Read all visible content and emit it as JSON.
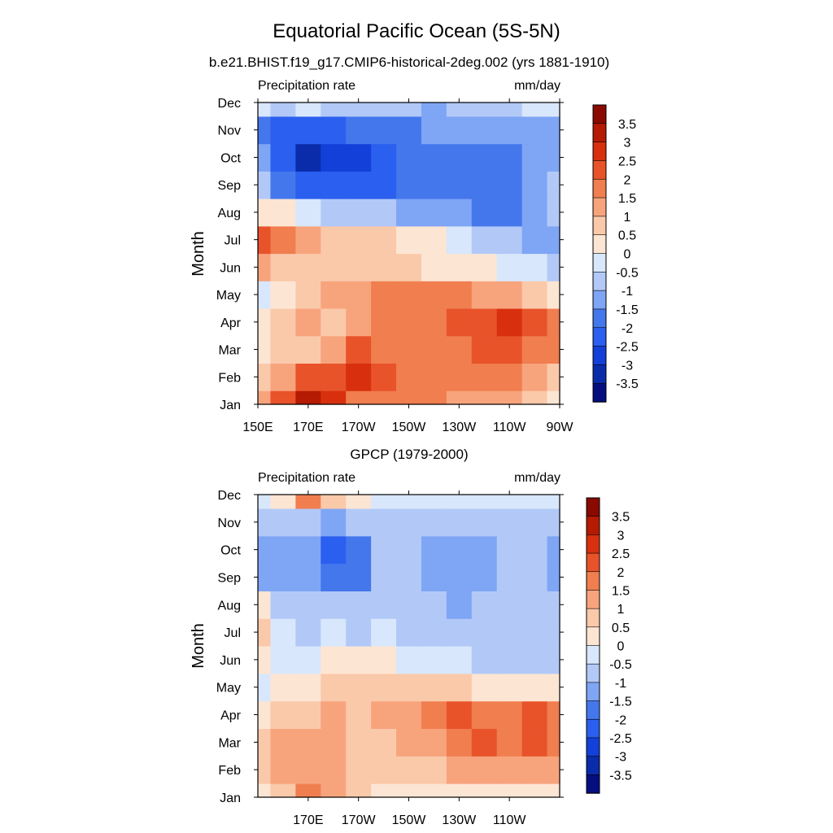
{
  "figure": {
    "title": "Equatorial Pacific Ocean (5S-5N)"
  },
  "chart_data": [
    {
      "type": "heatmap",
      "subtitle": "b.e21.BHIST.f19_g17.CMIP6-historical-2deg.002 (yrs 1881-1910)",
      "left_label": "Precipitation rate",
      "right_label": "mm/day",
      "ylabel": "Month",
      "xlabel": "",
      "x_range": [
        150,
        270
      ],
      "x_ticks": [
        150,
        170,
        190,
        210,
        230,
        250,
        270
      ],
      "x_tick_labels": [
        "150E",
        "170E",
        "170W",
        "150W",
        "130W",
        "110W",
        "90W"
      ],
      "y_ticks": [
        "Jan",
        "Feb",
        "Mar",
        "Apr",
        "May",
        "Jun",
        "Jul",
        "Aug",
        "Sep",
        "Oct",
        "Nov",
        "Dec"
      ],
      "colorbar_ticks": [
        "3.5",
        "3",
        "2.5",
        "2",
        "1.5",
        "1",
        "0.5",
        "0",
        "-0.5",
        "-1",
        "-1.5",
        "-2",
        "-2.5",
        "-3",
        "-3.5"
      ],
      "lon": [
        150,
        160,
        170,
        180,
        190,
        200,
        210,
        220,
        230,
        240,
        250,
        260,
        270
      ],
      "values": [
        [
          1.0,
          2.0,
          3.2,
          2.5,
          1.8,
          1.5,
          1.5,
          1.5,
          1.2,
          1.2,
          1.0,
          0.6,
          0.2
        ],
        [
          0.7,
          1.2,
          2.0,
          2.3,
          2.7,
          2.0,
          1.7,
          1.6,
          1.7,
          1.7,
          1.5,
          1.0,
          0.6
        ],
        [
          0.4,
          0.5,
          0.9,
          1.4,
          2.0,
          1.7,
          1.7,
          1.8,
          1.9,
          2.0,
          2.0,
          1.6,
          1.5
        ],
        [
          0.1,
          0.6,
          1.2,
          0.7,
          1.2,
          1.6,
          1.8,
          1.8,
          2.2,
          2.4,
          2.7,
          2.2,
          1.6
        ],
        [
          -0.2,
          0.3,
          0.8,
          1.0,
          1.3,
          1.7,
          1.8,
          1.5,
          1.5,
          1.3,
          1.0,
          0.8,
          0.4
        ],
        [
          1.0,
          0.8,
          0.7,
          0.7,
          0.8,
          0.8,
          0.6,
          0.4,
          0.1,
          0.1,
          -0.2,
          -0.4,
          -0.7
        ],
        [
          2.2,
          1.8,
          1.0,
          0.8,
          0.7,
          0.6,
          0.4,
          0.0,
          -0.4,
          -0.6,
          -0.8,
          -1.2,
          -1.3
        ],
        [
          0.3,
          0.2,
          -0.3,
          -0.6,
          -0.9,
          -1.0,
          -1.1,
          -1.3,
          -1.5,
          -1.6,
          -1.8,
          -1.1,
          -0.8
        ],
        [
          -0.8,
          -2.0,
          -2.3,
          -2.2,
          -2.2,
          -2.1,
          -1.8,
          -1.8,
          -1.8,
          -1.7,
          -1.6,
          -1.3,
          -0.9
        ],
        [
          -1.5,
          -2.3,
          -3.2,
          -2.7,
          -2.7,
          -2.4,
          -2.0,
          -1.7,
          -1.6,
          -1.6,
          -1.6,
          -1.4,
          -1.3
        ],
        [
          -1.7,
          -2.2,
          -2.3,
          -2.2,
          -2.0,
          -1.8,
          -1.6,
          -1.5,
          -1.5,
          -1.4,
          -1.4,
          -1.3,
          -1.2
        ],
        [
          -0.5,
          -0.6,
          -0.4,
          -0.7,
          -0.8,
          -0.9,
          -1.0,
          -1.1,
          -1.0,
          -0.8,
          -0.6,
          -0.4,
          -0.3
        ]
      ]
    },
    {
      "type": "heatmap",
      "subtitle": "GPCP (1979-2000)",
      "left_label": "Precipitation rate",
      "right_label": "mm/day",
      "ylabel": "Month",
      "xlabel": "",
      "x_range": [
        150,
        270
      ],
      "x_ticks": [
        170,
        190,
        210,
        230,
        250
      ],
      "x_tick_labels": [
        "170E",
        "170W",
        "150W",
        "130W",
        "110W"
      ],
      "y_ticks": [
        "Jan",
        "Feb",
        "Mar",
        "Apr",
        "May",
        "Jun",
        "Jul",
        "Aug",
        "Sep",
        "Oct",
        "Nov",
        "Dec"
      ],
      "colorbar_ticks": [
        "3.5",
        "3",
        "2.5",
        "2",
        "1.5",
        "1",
        "0.5",
        "0",
        "-0.5",
        "-1",
        "-1.5",
        "-2",
        "-2.5",
        "-3",
        "-3.5"
      ],
      "lon": [
        150,
        160,
        170,
        180,
        190,
        200,
        210,
        220,
        230,
        240,
        250,
        260,
        270
      ],
      "values": [
        [
          0.3,
          0.8,
          1.6,
          1.0,
          0.5,
          0.4,
          0.3,
          0.3,
          0.1,
          0.3,
          0.3,
          0.2,
          0.3
        ],
        [
          0.8,
          1.2,
          1.1,
          1.3,
          0.8,
          0.7,
          0.8,
          0.8,
          1.0,
          1.2,
          1.2,
          1.0,
          1.2
        ],
        [
          0.6,
          1.3,
          1.2,
          1.4,
          0.8,
          0.9,
          1.1,
          1.4,
          1.8,
          2.0,
          1.8,
          2.2,
          1.5
        ],
        [
          0.2,
          0.6,
          0.9,
          1.2,
          0.8,
          1.0,
          1.2,
          1.6,
          2.2,
          1.9,
          1.8,
          2.1,
          1.6
        ],
        [
          -0.2,
          0.2,
          0.3,
          0.6,
          0.7,
          0.9,
          0.9,
          0.8,
          0.6,
          0.4,
          0.3,
          0.2,
          0.0
        ],
        [
          0.3,
          -0.3,
          -0.3,
          0.4,
          0.2,
          0.1,
          -0.3,
          -0.4,
          -0.5,
          -0.6,
          -0.6,
          -0.6,
          -0.6
        ],
        [
          0.5,
          -0.5,
          -0.6,
          -0.5,
          -0.6,
          -0.5,
          -0.6,
          -0.7,
          -0.7,
          -0.7,
          -0.7,
          -0.7,
          -0.8
        ],
        [
          0.2,
          -0.7,
          -0.9,
          -1.0,
          -0.9,
          -0.8,
          -0.7,
          -1.0,
          -1.1,
          -1.0,
          -0.7,
          -0.8,
          -1.0
        ],
        [
          -1.5,
          -1.1,
          -1.4,
          -2.0,
          -1.6,
          -1.0,
          -0.9,
          -1.2,
          -1.2,
          -1.2,
          -0.9,
          -0.9,
          -1.3
        ],
        [
          -1.1,
          -1.1,
          -1.3,
          -2.2,
          -1.7,
          -1.0,
          -0.9,
          -1.2,
          -1.1,
          -1.1,
          -0.9,
          -1.0,
          -1.3
        ],
        [
          -0.8,
          -1.0,
          -1.0,
          -1.1,
          -0.9,
          -0.9,
          -0.9,
          -0.9,
          -0.8,
          -0.8,
          -0.7,
          -0.8,
          -0.9
        ],
        [
          -0.4,
          0.3,
          1.7,
          0.9,
          0.3,
          -0.1,
          -0.3,
          -0.4,
          -0.4,
          -0.4,
          -0.4,
          -0.4,
          -0.3
        ]
      ]
    }
  ],
  "colors": {
    "levels": [
      -3.5,
      -3,
      -2.5,
      -2,
      -1.5,
      -1,
      -0.5,
      0,
      0.5,
      1,
      1.5,
      2,
      2.5,
      3,
      3.5
    ],
    "palette": [
      "#050E7E",
      "#0A2CAB",
      "#1340D8",
      "#2A5FEF",
      "#4477EC",
      "#7FA5F5",
      "#B2C9F8",
      "#D8E7FB",
      "#FDE5D3",
      "#FAC9AA",
      "#F7A47D",
      "#F07E4F",
      "#E8532A",
      "#D8300E",
      "#B51A02",
      "#8A0A00"
    ]
  }
}
